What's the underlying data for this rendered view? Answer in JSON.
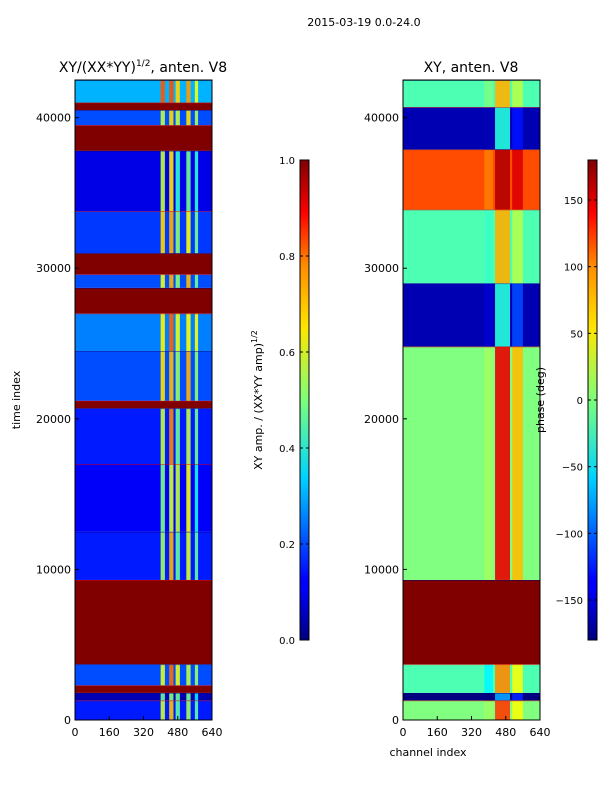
{
  "suptitle": "2015-03-19 0.0-24.0",
  "chart_data": [
    {
      "type": "heatmap",
      "title": "XY/(XX*YY)",
      "title_exponent": "1/2",
      "title_suffix": ", anten. V8",
      "xlabel": "",
      "ylabel": "time index",
      "xlim": [
        0,
        640
      ],
      "ylim": [
        0,
        42500
      ],
      "xticks": [
        "0",
        "160",
        "320",
        "480",
        "640"
      ],
      "yticks": [
        "0",
        "10000",
        "20000",
        "30000",
        "40000"
      ],
      "colorbar": {
        "label": "XY amp. / (XX*YY amp)",
        "label_exponent": "1/2",
        "range": [
          0.0,
          1.0
        ],
        "ticks": [
          "0.0",
          "0.2",
          "0.4",
          "0.6",
          "0.8",
          "1.0"
        ]
      },
      "bands": [
        {
          "y0": 0,
          "y1": 1300,
          "level": 0.15
        },
        {
          "y0": 1300,
          "y1": 1800,
          "level": 0.05
        },
        {
          "y0": 1800,
          "y1": 2300,
          "level": 1.0
        },
        {
          "y0": 2300,
          "y1": 3700,
          "level": 0.2
        },
        {
          "y0": 3700,
          "y1": 9300,
          "level": 1.0
        },
        {
          "y0": 9300,
          "y1": 12500,
          "level": 0.15
        },
        {
          "y0": 12500,
          "y1": 17000,
          "level": 0.12
        },
        {
          "y0": 17000,
          "y1": 20700,
          "level": 0.15
        },
        {
          "y0": 20700,
          "y1": 21200,
          "level": 1.0
        },
        {
          "y0": 21200,
          "y1": 24500,
          "level": 0.2
        },
        {
          "y0": 24500,
          "y1": 27000,
          "level": 0.25
        },
        {
          "y0": 27000,
          "y1": 28700,
          "level": 1.0
        },
        {
          "y0": 28700,
          "y1": 29600,
          "level": 0.2
        },
        {
          "y0": 29600,
          "y1": 31000,
          "level": 1.0
        },
        {
          "y0": 31000,
          "y1": 33800,
          "level": 0.18
        },
        {
          "y0": 33800,
          "y1": 37800,
          "level": 0.1
        },
        {
          "y0": 37800,
          "y1": 39500,
          "level": 1.0
        },
        {
          "y0": 39500,
          "y1": 40500,
          "level": 0.2
        },
        {
          "y0": 40500,
          "y1": 41000,
          "level": 1.0
        },
        {
          "y0": 41000,
          "y1": 42500,
          "level": 0.3
        }
      ]
    },
    {
      "type": "heatmap",
      "title": "XY, anten. V8",
      "xlabel": "channel index",
      "ylabel": "",
      "xlim": [
        0,
        640
      ],
      "ylim": [
        0,
        42500
      ],
      "xticks": [
        "0",
        "160",
        "320",
        "480",
        "640"
      ],
      "yticks": [
        "0",
        "10000",
        "20000",
        "30000",
        "40000"
      ],
      "colorbar": {
        "label": "phase (deg)",
        "range": [
          -180,
          180
        ],
        "ticks": [
          "−150",
          "−100",
          "−50",
          "0",
          "50",
          "100",
          "150"
        ]
      },
      "bands": [
        {
          "y0": 0,
          "y1": 1300,
          "level": 0.5
        },
        {
          "y0": 1300,
          "y1": 1800,
          "level": 0.0
        },
        {
          "y0": 1800,
          "y1": 3700,
          "level": 0.45
        },
        {
          "y0": 3700,
          "y1": 9300,
          "level": 1.0
        },
        {
          "y0": 9300,
          "y1": 24800,
          "level": 0.5
        },
        {
          "y0": 24800,
          "y1": 29000,
          "level": 0.05
        },
        {
          "y0": 29000,
          "y1": 33900,
          "level": 0.45
        },
        {
          "y0": 33900,
          "y1": 37900,
          "level": 0.8
        },
        {
          "y0": 37900,
          "y1": 40700,
          "level": 0.05
        },
        {
          "y0": 40700,
          "y1": 42500,
          "level": 0.45
        }
      ]
    }
  ]
}
